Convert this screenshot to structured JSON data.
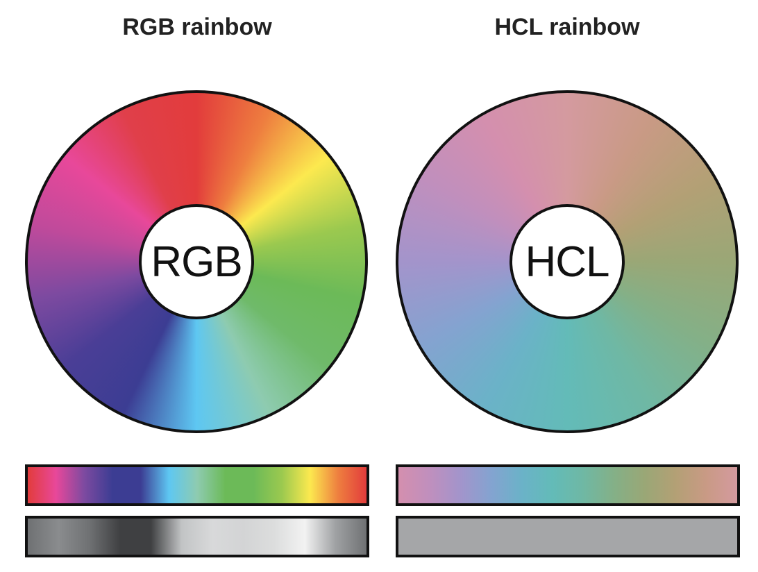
{
  "panels": {
    "rgb": {
      "title": "RGB rainbow",
      "hub_label": "RGB",
      "wheel_stops": [
        "#e23c3c",
        "#ee7e3f",
        "#fce94f",
        "#9bc94f",
        "#6cba58",
        "#6fba6a",
        "#8ecbb0",
        "#5ec7f2",
        "#3c3d93",
        "#4a3e96",
        "#7d4aa0",
        "#c04a9b",
        "#e8489a",
        "#e03f4a",
        "#e23c3c"
      ],
      "bar_stops": [
        "#e23c3c",
        "#e8489a",
        "#7d4aa0",
        "#3c3d93",
        "#3c3d93",
        "#5ec7f2",
        "#8ecbb0",
        "#6cba58",
        "#6cba58",
        "#9bc94f",
        "#fce94f",
        "#ee7e3f",
        "#e23c3c"
      ],
      "gray_stops": [
        "#6f7173",
        "#8a8c8e",
        "#6f7173",
        "#3f4042",
        "#3f4042",
        "#c2c4c5",
        "#d8d9da",
        "#d3d4d5",
        "#dcdddd",
        "#f2f2f2",
        "#9fa1a3",
        "#6f7173"
      ]
    },
    "hcl": {
      "title": "HCL rainbow",
      "hub_label": "HCL",
      "wheel_stops": [
        "#d49a9f",
        "#c99a85",
        "#b3a075",
        "#9aa776",
        "#84b087",
        "#6fb8a4",
        "#63bbb8",
        "#6bb2c8",
        "#84a3d0",
        "#a394cb",
        "#c08fbd",
        "#d48fae",
        "#d49a9f"
      ],
      "bar_stops": [
        "#d48fae",
        "#c08fbd",
        "#a394cb",
        "#84a3d0",
        "#6bb2c8",
        "#63bbb8",
        "#6fb8a4",
        "#84b087",
        "#9aa776",
        "#b3a075",
        "#c99a85",
        "#d49a9f"
      ],
      "gray_stops": [
        "#a5a6a8",
        "#a5a6a8"
      ]
    }
  },
  "colors": {
    "outline": "#111111",
    "hub_fill": "#ffffff"
  }
}
